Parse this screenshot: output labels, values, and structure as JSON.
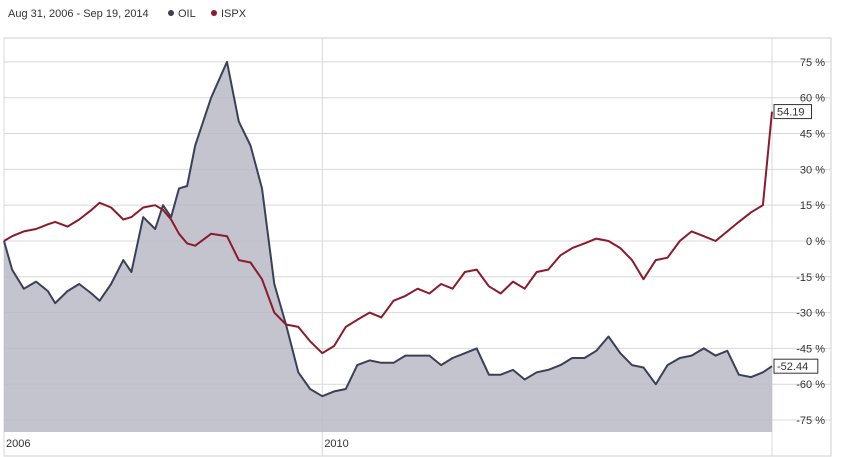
{
  "chart_data": {
    "type": "area",
    "title": "Aug 31, 2006 - Sep 19, 2014",
    "xlabel": "",
    "ylabel": "",
    "x_range": [
      "2006-08-31",
      "2014-09-19"
    ],
    "x_ticks": [
      {
        "date": "2006-08-31",
        "label": "2006"
      },
      {
        "date": "2010-01-01",
        "label": "2010"
      }
    ],
    "ylim": [
      -80,
      85
    ],
    "y_ticks": [
      75,
      60,
      45,
      30,
      15,
      0,
      -15,
      -30,
      -45,
      -60,
      -75
    ],
    "y_tick_suffix": " %",
    "grid": true,
    "legend_position": "top-left",
    "colors": {
      "OIL": "#3b4058",
      "ISPX": "#8b1a2b",
      "oil_fill": "#b9bac5",
      "grid": "#d8d8d8"
    },
    "series": [
      {
        "name": "OIL",
        "end_label": "-52.44",
        "points": [
          [
            "2006-08-31",
            0
          ],
          [
            "2006-10-01",
            -12
          ],
          [
            "2006-11-15",
            -20
          ],
          [
            "2007-01-01",
            -17
          ],
          [
            "2007-02-15",
            -21
          ],
          [
            "2007-03-15",
            -26
          ],
          [
            "2007-05-01",
            -21
          ],
          [
            "2007-06-15",
            -18
          ],
          [
            "2007-08-01",
            -22
          ],
          [
            "2007-09-01",
            -25
          ],
          [
            "2007-10-15",
            -18
          ],
          [
            "2007-12-01",
            -8
          ],
          [
            "2008-01-01",
            -13
          ],
          [
            "2008-02-15",
            10
          ],
          [
            "2008-04-01",
            5
          ],
          [
            "2008-05-01",
            15
          ],
          [
            "2008-06-01",
            10
          ],
          [
            "2008-07-01",
            22
          ],
          [
            "2008-08-01",
            23
          ],
          [
            "2008-09-01",
            40
          ],
          [
            "2008-11-01",
            60
          ],
          [
            "2009-01-01",
            75
          ],
          [
            "2009-02-15",
            50
          ],
          [
            "2009-04-01",
            40
          ],
          [
            "2009-05-15",
            22
          ],
          [
            "2009-07-01",
            -18
          ],
          [
            "2009-08-15",
            -35
          ],
          [
            "2009-10-01",
            -55
          ],
          [
            "2009-11-15",
            -62
          ],
          [
            "2010-01-01",
            -65
          ],
          [
            "2010-02-15",
            -63
          ],
          [
            "2010-04-01",
            -62
          ],
          [
            "2010-05-15",
            -52
          ],
          [
            "2010-07-01",
            -50
          ],
          [
            "2010-08-15",
            -51
          ],
          [
            "2010-10-01",
            -51
          ],
          [
            "2010-11-15",
            -48
          ],
          [
            "2011-01-01",
            -48
          ],
          [
            "2011-02-15",
            -48
          ],
          [
            "2011-04-01",
            -52
          ],
          [
            "2011-05-15",
            -49
          ],
          [
            "2011-07-01",
            -47
          ],
          [
            "2011-08-15",
            -45
          ],
          [
            "2011-10-01",
            -56
          ],
          [
            "2011-11-15",
            -56
          ],
          [
            "2012-01-01",
            -54
          ],
          [
            "2012-02-15",
            -58
          ],
          [
            "2012-04-01",
            -55
          ],
          [
            "2012-05-15",
            -54
          ],
          [
            "2012-07-01",
            -52
          ],
          [
            "2012-08-15",
            -49
          ],
          [
            "2012-10-01",
            -49
          ],
          [
            "2012-11-15",
            -46
          ],
          [
            "2013-01-01",
            -40
          ],
          [
            "2013-02-15",
            -47
          ],
          [
            "2013-04-01",
            -52
          ],
          [
            "2013-05-15",
            -53
          ],
          [
            "2013-07-01",
            -60
          ],
          [
            "2013-08-15",
            -52
          ],
          [
            "2013-10-01",
            -49
          ],
          [
            "2013-11-15",
            -48
          ],
          [
            "2014-01-01",
            -45
          ],
          [
            "2014-02-15",
            -48
          ],
          [
            "2014-04-01",
            -46
          ],
          [
            "2014-05-15",
            -56
          ],
          [
            "2014-07-01",
            -57
          ],
          [
            "2014-08-15",
            -55
          ],
          [
            "2014-09-19",
            -52.44
          ]
        ]
      },
      {
        "name": "ISPX",
        "end_label": "54.19",
        "points": [
          [
            "2006-08-31",
            0
          ],
          [
            "2006-10-01",
            2
          ],
          [
            "2006-11-15",
            4
          ],
          [
            "2007-01-01",
            5
          ],
          [
            "2007-02-15",
            7
          ],
          [
            "2007-03-15",
            8
          ],
          [
            "2007-05-01",
            6
          ],
          [
            "2007-06-15",
            9
          ],
          [
            "2007-08-01",
            13
          ],
          [
            "2007-09-01",
            16
          ],
          [
            "2007-10-15",
            14
          ],
          [
            "2007-12-01",
            9
          ],
          [
            "2008-01-01",
            10
          ],
          [
            "2008-02-15",
            14
          ],
          [
            "2008-04-01",
            15
          ],
          [
            "2008-05-01",
            13
          ],
          [
            "2008-06-01",
            9
          ],
          [
            "2008-07-01",
            3
          ],
          [
            "2008-08-01",
            -1
          ],
          [
            "2008-09-01",
            -2
          ],
          [
            "2008-11-01",
            3
          ],
          [
            "2009-01-01",
            2
          ],
          [
            "2009-02-15",
            -8
          ],
          [
            "2009-04-01",
            -9
          ],
          [
            "2009-05-15",
            -16
          ],
          [
            "2009-07-01",
            -30
          ],
          [
            "2009-08-15",
            -35
          ],
          [
            "2009-10-01",
            -36
          ],
          [
            "2009-11-15",
            -42
          ],
          [
            "2010-01-01",
            -47
          ],
          [
            "2010-02-15",
            -44
          ],
          [
            "2010-04-01",
            -36
          ],
          [
            "2010-05-15",
            -33
          ],
          [
            "2010-07-01",
            -30
          ],
          [
            "2010-08-15",
            -32
          ],
          [
            "2010-10-01",
            -25
          ],
          [
            "2010-11-15",
            -23
          ],
          [
            "2011-01-01",
            -20
          ],
          [
            "2011-02-15",
            -22
          ],
          [
            "2011-04-01",
            -18
          ],
          [
            "2011-05-15",
            -20
          ],
          [
            "2011-07-01",
            -13
          ],
          [
            "2011-08-15",
            -12
          ],
          [
            "2011-10-01",
            -19
          ],
          [
            "2011-11-15",
            -22
          ],
          [
            "2012-01-01",
            -17
          ],
          [
            "2012-02-15",
            -20
          ],
          [
            "2012-04-01",
            -13
          ],
          [
            "2012-05-15",
            -12
          ],
          [
            "2012-07-01",
            -6
          ],
          [
            "2012-08-15",
            -3
          ],
          [
            "2012-10-01",
            -1
          ],
          [
            "2012-11-15",
            1
          ],
          [
            "2013-01-01",
            0
          ],
          [
            "2013-02-15",
            -3
          ],
          [
            "2013-04-01",
            -8
          ],
          [
            "2013-05-15",
            -16
          ],
          [
            "2013-07-01",
            -8
          ],
          [
            "2013-08-15",
            -7
          ],
          [
            "2013-10-01",
            0
          ],
          [
            "2013-11-15",
            4
          ],
          [
            "2014-01-01",
            2
          ],
          [
            "2014-02-15",
            0
          ],
          [
            "2014-04-01",
            4
          ],
          [
            "2014-05-15",
            8
          ],
          [
            "2014-07-01",
            12
          ],
          [
            "2014-08-15",
            15
          ],
          [
            "2014-09-19",
            54.19
          ]
        ]
      }
    ]
  }
}
